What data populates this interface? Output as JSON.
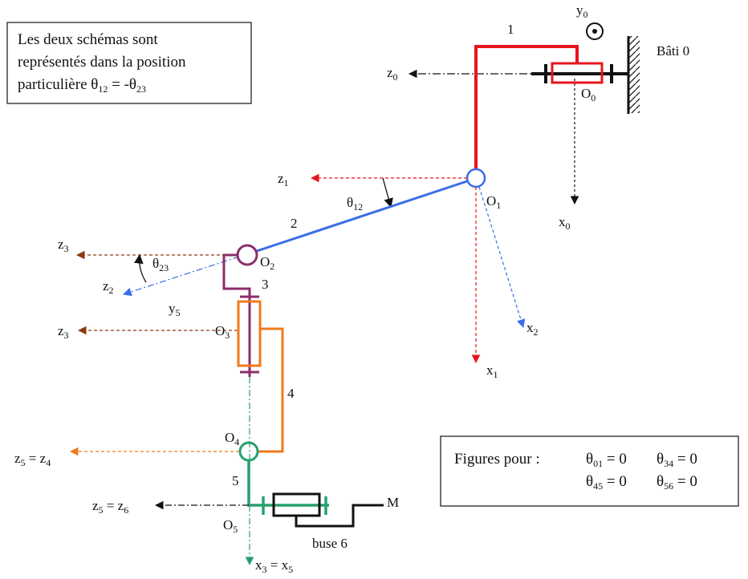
{
  "note_box": {
    "line1": "Les deux schémas sont",
    "line2": "représentés  dans la position",
    "line3_prefix": "particulière  θ",
    "line3_sub1": "12",
    "line3_mid": " = -θ",
    "line3_sub2": "23"
  },
  "figures_box": {
    "label": "Figures pour  :",
    "c1": {
      "t": "θ",
      "s": "01",
      "v": " = 0"
    },
    "c2": {
      "t": "θ",
      "s": "34",
      "v": " = 0"
    },
    "c3": {
      "t": "θ",
      "s": "45",
      "v": " = 0"
    },
    "c4": {
      "t": "θ",
      "s": "56",
      "v": " = 0"
    }
  },
  "labels": {
    "bati": "Bâti 0",
    "y0": {
      "t": "y",
      "s": "0"
    },
    "z0": {
      "t": "z",
      "s": "0"
    },
    "x0": {
      "t": "x",
      "s": "0"
    },
    "O0": {
      "t": "O",
      "s": "0"
    },
    "z1": {
      "t": "z",
      "s": "1"
    },
    "x1": {
      "t": "x",
      "s": "1"
    },
    "O1": {
      "t": "O",
      "s": "1"
    },
    "theta12": {
      "t": "θ",
      "s": "12"
    },
    "x2": {
      "t": "x",
      "s": "2"
    },
    "z2": {
      "t": "z",
      "s": "2"
    },
    "z3a": {
      "t": "z",
      "s": "3"
    },
    "z3b": {
      "t": "z",
      "s": "3"
    },
    "theta23": {
      "t": "θ",
      "s": "23"
    },
    "O2": {
      "t": "O",
      "s": "2"
    },
    "y5": {
      "t": "y",
      "s": "5"
    },
    "O3": {
      "t": "O",
      "s": "3"
    },
    "O4": {
      "t": "O",
      "s": "4"
    },
    "O5": {
      "t": "O",
      "s": "5"
    },
    "z5z4": {
      "t1": "z",
      "s1": "5",
      "mid": " = z",
      "s2": "4"
    },
    "z5z6": {
      "t1": "z",
      "s1": "5",
      "mid": " = z",
      "s2": "6"
    },
    "x3x5": {
      "t1": "x",
      "s1": "3",
      "mid": " = x",
      "s2": "5"
    },
    "buse": "buse 6",
    "M": "M"
  },
  "parts": {
    "p1": "1",
    "p2": "2",
    "p3": "3",
    "p4": "4",
    "p5": "5"
  },
  "colors": {
    "red": "#e8141c",
    "blue": "#3a6ee8",
    "purple": "#8c2e6a",
    "orange": "#f07a1c",
    "green": "#27a070",
    "brown": "#8a3a10",
    "black": "#111111"
  }
}
